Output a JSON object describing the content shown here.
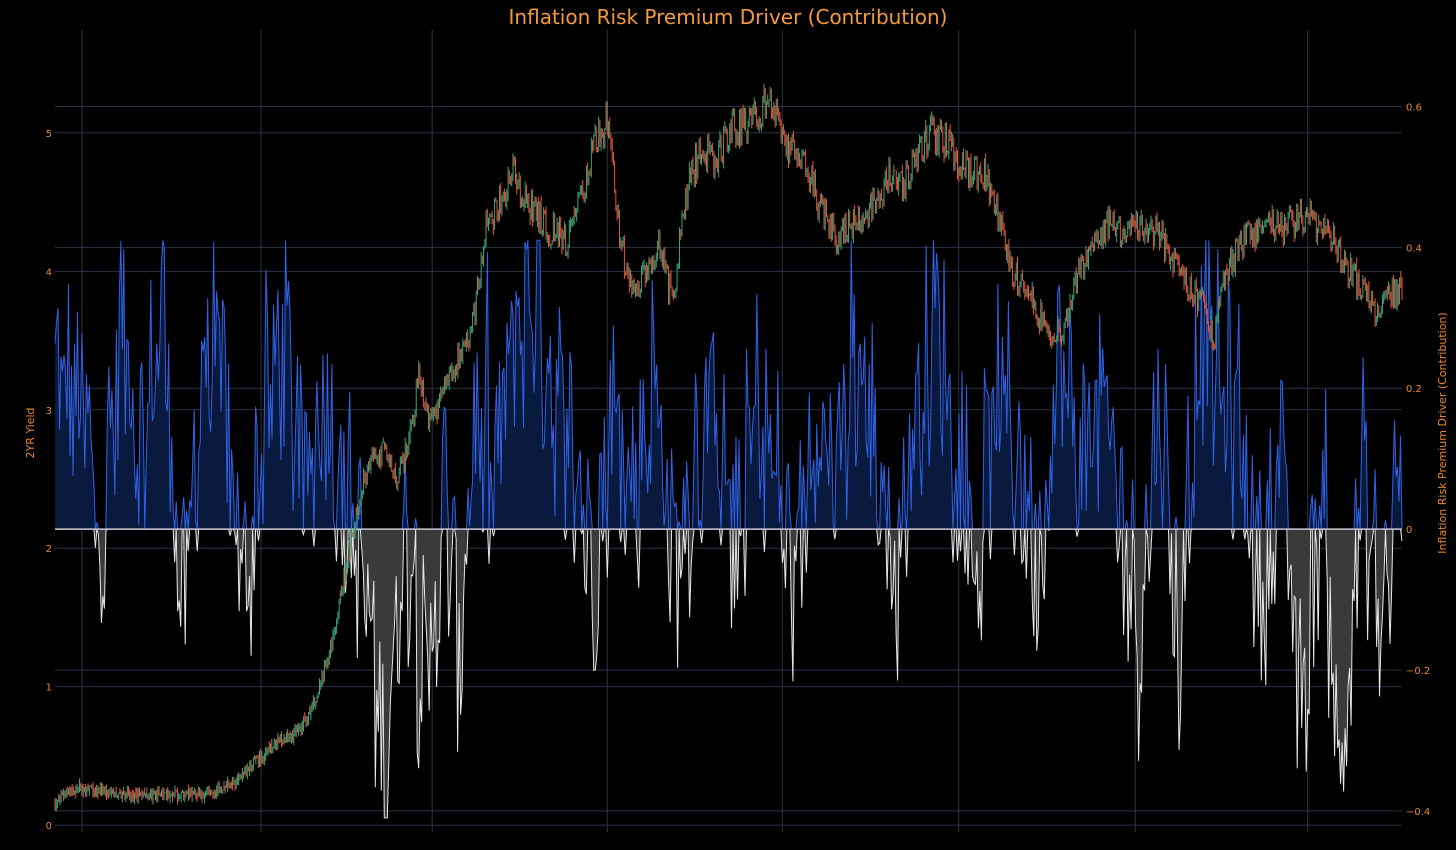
{
  "colors": {
    "background": "#000000",
    "grid": "#2a3245",
    "zeroline": "#c8c8cc",
    "tick_text": "#e8862a",
    "title": "#f59a3c",
    "candle_up": "#3aa57a",
    "candle_down": "#e8553c",
    "positive_line": "#2f63e6",
    "positive_fill": "#0a1a3e",
    "negative_line": "#e6e6e6",
    "negative_fill": "#3a3a3a"
  },
  "chart_data": {
    "type": "line",
    "title": "Inflation Risk Premium Driver (Contribution)",
    "ylabel_left": "2YR Yield",
    "ylabel_right": "Inflation Risk Premium Driver (Contribution)",
    "y_left_range": [
      -0.05,
      5.7
    ],
    "y_right_range": [
      -0.43,
      0.7
    ],
    "y_left_ticks": [
      0,
      1,
      2,
      3,
      4,
      5
    ],
    "y_right_ticks": [
      -0.4,
      -0.2,
      0,
      0.2,
      0.4,
      0.6
    ],
    "y_right_tick_labels": [
      "−0.4",
      "−0.2",
      "0",
      "0.2",
      "0.4",
      "0.6"
    ],
    "grid": true,
    "legend": "none",
    "series": [
      {
        "kind": "candlestick",
        "axis": "left",
        "t": [
          0,
          0.01,
          0.02,
          0.05,
          0.08,
          0.11,
          0.135,
          0.145,
          0.155,
          0.165,
          0.175,
          0.185,
          0.195,
          0.205,
          0.215,
          0.225,
          0.232,
          0.245,
          0.255,
          0.265,
          0.27,
          0.275,
          0.28,
          0.29,
          0.3,
          0.31,
          0.32,
          0.33,
          0.34,
          0.35,
          0.36,
          0.365,
          0.37,
          0.38,
          0.39,
          0.4,
          0.41,
          0.42,
          0.43,
          0.44,
          0.45,
          0.455,
          0.46,
          0.465,
          0.47,
          0.48,
          0.49,
          0.5,
          0.51,
          0.52,
          0.53,
          0.54,
          0.55,
          0.56,
          0.57,
          0.58,
          0.59,
          0.6,
          0.61,
          0.62,
          0.63,
          0.64,
          0.65,
          0.66,
          0.67,
          0.68,
          0.69,
          0.7,
          0.71,
          0.72,
          0.73,
          0.74,
          0.75,
          0.76,
          0.77,
          0.78,
          0.79,
          0.8,
          0.81,
          0.82,
          0.83,
          0.84,
          0.85,
          0.86,
          0.865,
          0.87,
          0.88,
          0.89,
          0.9,
          0.91,
          0.92,
          0.93,
          0.94,
          0.95,
          0.96,
          0.97,
          0.98,
          0.99,
          1.0
        ],
        "y": [
          0.15,
          0.25,
          0.27,
          0.22,
          0.22,
          0.22,
          0.3,
          0.45,
          0.5,
          0.6,
          0.62,
          0.75,
          0.95,
          1.3,
          1.8,
          2.3,
          2.6,
          2.7,
          2.5,
          2.9,
          3.3,
          3.0,
          2.9,
          3.2,
          3.4,
          3.6,
          4.3,
          4.5,
          4.7,
          4.5,
          4.4,
          4.3,
          4.3,
          4.2,
          4.5,
          4.9,
          5.1,
          4.2,
          3.8,
          4.0,
          4.2,
          3.9,
          3.8,
          4.3,
          4.6,
          4.9,
          4.8,
          5.0,
          5.05,
          5.1,
          5.25,
          5.0,
          4.8,
          4.7,
          4.4,
          4.25,
          4.35,
          4.4,
          4.5,
          4.7,
          4.6,
          4.85,
          5.0,
          4.95,
          4.8,
          4.7,
          4.7,
          4.4,
          4.0,
          3.9,
          3.7,
          3.55,
          3.6,
          4.0,
          4.2,
          4.35,
          4.3,
          4.3,
          4.3,
          4.25,
          4.1,
          3.9,
          3.8,
          3.5,
          3.8,
          4.0,
          4.2,
          4.3,
          4.35,
          4.3,
          4.35,
          4.4,
          4.3,
          4.2,
          4.0,
          3.9,
          3.7,
          3.85,
          3.85
        ]
      },
      {
        "kind": "line_fill",
        "axis": "right",
        "name": "",
        "t": [
          0,
          0.02,
          0.035,
          0.05,
          0.065,
          0.08,
          0.095,
          0.11,
          0.125,
          0.14,
          0.155,
          0.17,
          0.185,
          0.2,
          0.215,
          0.23,
          0.245,
          0.26,
          0.275,
          0.29,
          0.3,
          0.31,
          0.325,
          0.34,
          0.355,
          0.37,
          0.385,
          0.4,
          0.415,
          0.43,
          0.445,
          0.46,
          0.475,
          0.49,
          0.505,
          0.52,
          0.535,
          0.55,
          0.565,
          0.58,
          0.595,
          0.61,
          0.625,
          0.64,
          0.655,
          0.67,
          0.685,
          0.7,
          0.715,
          0.73,
          0.745,
          0.76,
          0.775,
          0.79,
          0.805,
          0.82,
          0.835,
          0.85,
          0.865,
          0.88,
          0.895,
          0.91,
          0.925,
          0.94,
          0.955,
          0.97,
          0.985,
          1.0
        ],
        "y": [
          0.22,
          0.17,
          -0.02,
          0.3,
          0.1,
          0.33,
          -0.15,
          0.25,
          0.2,
          -0.1,
          0.15,
          0.28,
          0.05,
          0.2,
          0.05,
          -0.08,
          -0.35,
          0.02,
          -0.25,
          0.05,
          -0.2,
          0.15,
          0.05,
          0.27,
          0.35,
          0.2,
          0.1,
          -0.05,
          0.18,
          0.05,
          0.22,
          -0.06,
          0.1,
          0.2,
          -0.05,
          0.18,
          0.08,
          -0.1,
          0.2,
          0.05,
          0.25,
          0.1,
          -0.05,
          0.18,
          0.3,
          0.12,
          -0.08,
          0.2,
          0.1,
          -0.05,
          0.25,
          0.1,
          0.18,
          0.05,
          -0.15,
          0.2,
          -0.2,
          0.3,
          0.2,
          0.15,
          -0.1,
          0.1,
          -0.28,
          0.05,
          -0.38,
          0.08,
          -0.15,
          0.12
        ]
      }
    ]
  },
  "title_text": "Inflation Risk Premium Driver (Contribution)",
  "left_axis_label": "2YR Yield",
  "right_axis_label": "Inflation Risk Premium Driver (Contribution)"
}
